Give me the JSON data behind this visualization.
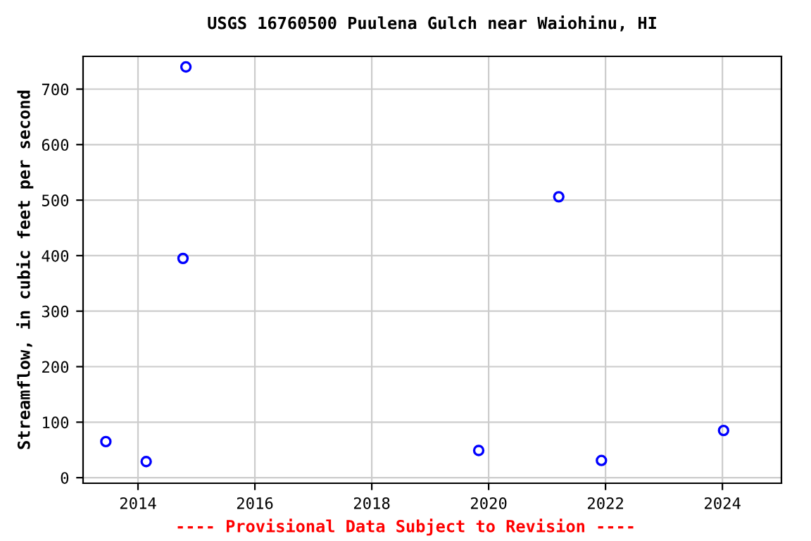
{
  "chart_data": {
    "type": "scatter",
    "title": "USGS 16760500 Puulena Gulch near Waiohinu, HI",
    "ylabel": "Streamflow, in cubic feet per second",
    "x": [
      2013.45,
      2014.14,
      2014.77,
      2014.82,
      2019.83,
      2021.2,
      2021.93,
      2024.02
    ],
    "series": [
      {
        "color": "#0000ff",
        "values": [
          65,
          29,
          395,
          740,
          49,
          506,
          31,
          85
        ]
      }
    ],
    "xlim": [
      2013.06,
      2025.01
    ],
    "ylim": [
      -10,
      759
    ],
    "xticks": [
      2014,
      2016,
      2018,
      2020,
      2022,
      2024
    ],
    "yticks": [
      0,
      100,
      200,
      300,
      400,
      500,
      600,
      700
    ],
    "grid": true,
    "marker": "circle",
    "annotations": [
      "---- Provisional Data Subject to Revision ----"
    ]
  }
}
